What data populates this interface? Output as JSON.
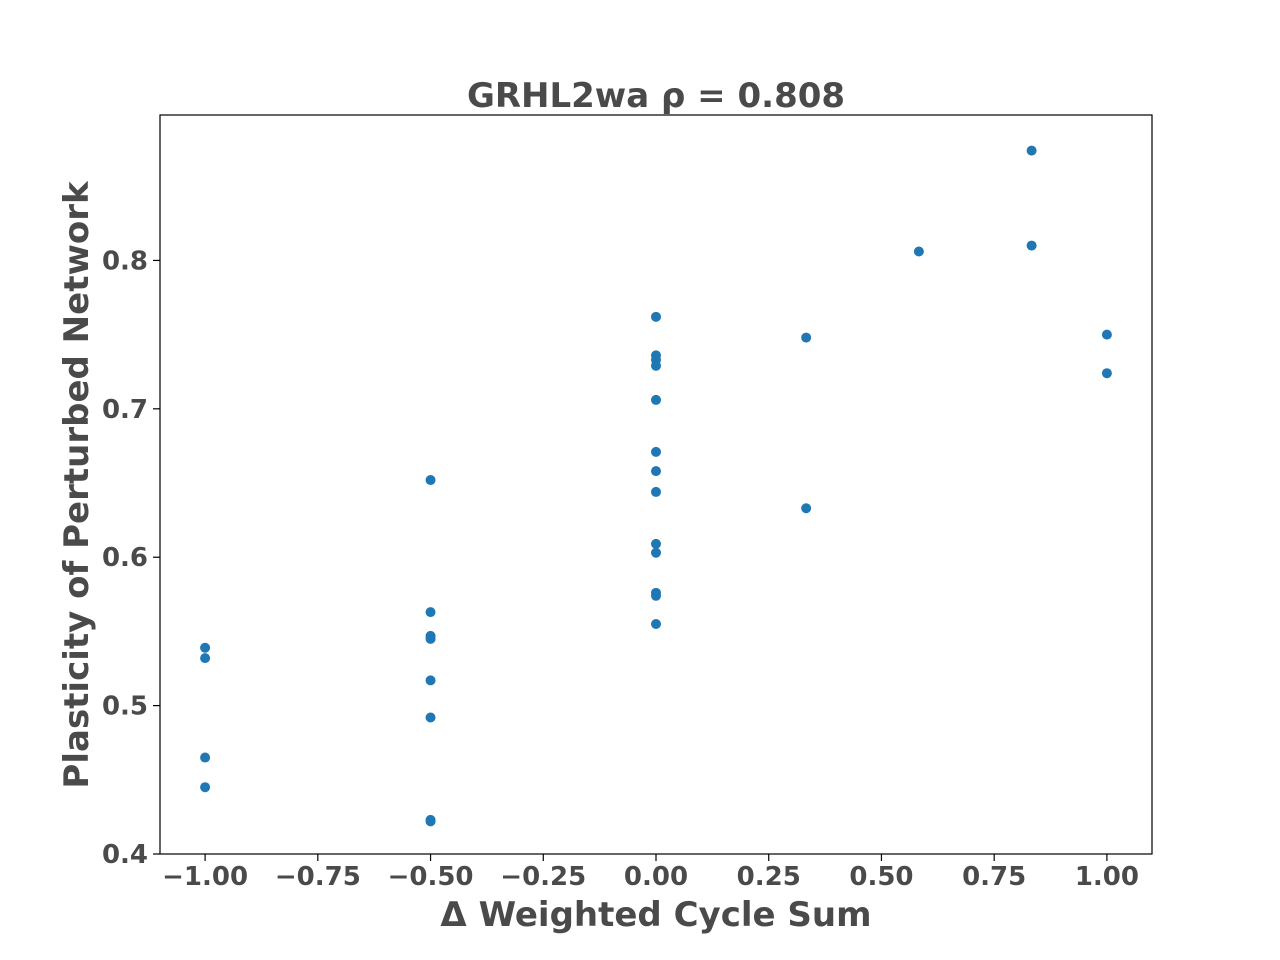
{
  "chart_data": {
    "type": "scatter",
    "title": "GRHL2wa  ρ = 0.808",
    "xlabel": "Δ Weighted Cycle Sum",
    "ylabel": "Plasticity of Perturbed Network",
    "xlim": [
      -1.1,
      1.1
    ],
    "ylim": [
      0.4,
      0.898
    ],
    "xticks": [
      -1.0,
      -0.75,
      -0.5,
      -0.25,
      0.0,
      0.25,
      0.5,
      0.75,
      1.0
    ],
    "xtick_labels": [
      "−1.00",
      "−0.75",
      "−0.50",
      "−0.25",
      "0.00",
      "0.25",
      "0.50",
      "0.75",
      "1.00"
    ],
    "yticks": [
      0.4,
      0.5,
      0.6,
      0.7,
      0.8
    ],
    "ytick_labels": [
      "0.4",
      "0.5",
      "0.6",
      "0.7",
      "0.8"
    ],
    "grid": false,
    "marker_color": "#1f77b4",
    "series": [
      {
        "x": [
          -1.0,
          -1.0,
          -1.0,
          -1.0,
          -0.5,
          -0.5,
          -0.5,
          -0.5,
          -0.5,
          -0.5,
          -0.5,
          -0.5,
          0.0,
          0.0,
          0.0,
          0.0,
          0.0,
          0.0,
          0.0,
          0.0,
          0.0,
          0.0,
          0.0,
          0.0,
          0.0,
          0.333,
          0.333,
          0.583,
          0.833,
          0.833,
          1.0,
          1.0
        ],
        "y": [
          0.539,
          0.532,
          0.465,
          0.445,
          0.652,
          0.563,
          0.547,
          0.545,
          0.517,
          0.492,
          0.423,
          0.422,
          0.762,
          0.736,
          0.733,
          0.729,
          0.706,
          0.671,
          0.658,
          0.644,
          0.609,
          0.603,
          0.576,
          0.574,
          0.555,
          0.748,
          0.633,
          0.806,
          0.874,
          0.81,
          0.75,
          0.724
        ]
      }
    ]
  }
}
